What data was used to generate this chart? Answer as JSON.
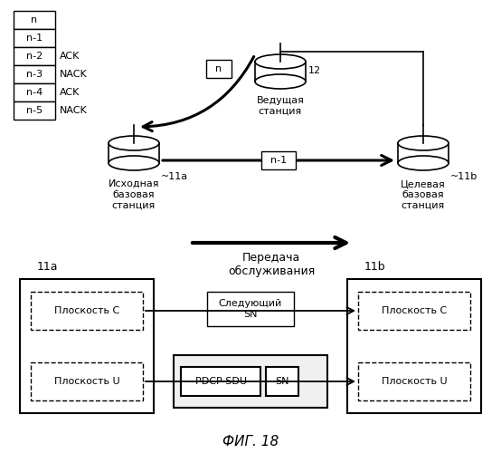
{
  "title": "ФИГ. 18",
  "bg_color": "#ffffff",
  "table_items": [
    "n",
    "n-1",
    "n-2",
    "n-3",
    "n-4",
    "n-5"
  ],
  "ack_map": {
    "2": "ACK",
    "3": "NACK",
    "4": "ACK",
    "5": "NACK"
  },
  "station_label_master": "Ведущая\nстанция",
  "station_label_source": "Исходная\nбазовая\nстанция",
  "station_label_target": "Целевая\nбазовая\nстанция",
  "handover_label": "Передача\nобслуживания",
  "label_11a_top": "~11a",
  "label_11b_top": "~11b",
  "label_12": "12",
  "label_n": "n",
  "label_n1": "n-1",
  "box_11a": "11a",
  "box_11b": "11b",
  "plane_c": "Плоскость C",
  "plane_u": "Плоскость U",
  "next_sn": "Следующий\nSN",
  "pdcp_sdu": "PDCP SDU",
  "sn": "SN"
}
